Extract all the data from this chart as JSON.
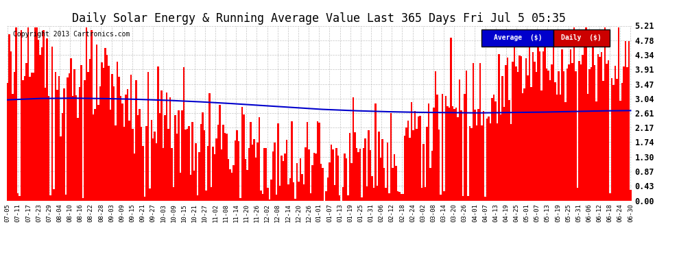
{
  "title": "Daily Solar Energy & Running Average Value Last 365 Days Fri Jul 5 05:35",
  "copyright": "Copyright 2013 Cartronics.com",
  "legend_average": "Average  ($)",
  "legend_daily": "Daily  ($)",
  "ylim": [
    0.0,
    5.21
  ],
  "yticks": [
    0.0,
    0.43,
    0.87,
    1.3,
    1.74,
    2.17,
    2.61,
    3.04,
    3.47,
    3.91,
    4.34,
    4.78,
    5.21
  ],
  "bar_color": "#ff0000",
  "avg_line_color": "#0000cc",
  "background_color": "#ffffff",
  "grid_color": "#aaaaaa",
  "title_fontsize": 12,
  "avg_legend_bg": "#0000cc",
  "daily_legend_bg": "#cc0000",
  "xlabels": [
    "07-05",
    "07-11",
    "07-17",
    "07-23",
    "07-29",
    "08-04",
    "08-10",
    "08-16",
    "08-22",
    "08-28",
    "09-03",
    "09-09",
    "09-15",
    "09-21",
    "09-27",
    "10-03",
    "10-09",
    "10-15",
    "10-21",
    "10-27",
    "11-02",
    "11-08",
    "11-14",
    "11-20",
    "11-26",
    "12-02",
    "12-08",
    "12-14",
    "12-20",
    "12-26",
    "01-01",
    "01-07",
    "01-13",
    "01-19",
    "01-25",
    "01-31",
    "02-06",
    "02-12",
    "02-18",
    "02-24",
    "03-02",
    "03-08",
    "03-14",
    "03-20",
    "03-26",
    "04-01",
    "04-07",
    "04-13",
    "04-19",
    "04-25",
    "05-01",
    "05-07",
    "05-13",
    "05-19",
    "05-25",
    "05-31",
    "06-06",
    "06-12",
    "06-18",
    "06-24",
    "06-30"
  ],
  "n_bars": 365,
  "avg_line_points": [
    3.0,
    3.04,
    3.05,
    3.04,
    3.02,
    2.99,
    2.95,
    2.9,
    2.84,
    2.78,
    2.72,
    2.68,
    2.65,
    2.63,
    2.62,
    2.61,
    2.62,
    2.63,
    2.65,
    2.67,
    2.68
  ]
}
